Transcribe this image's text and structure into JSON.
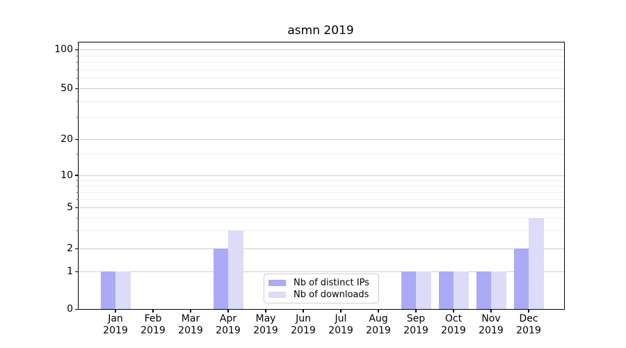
{
  "title": "asmn 2019",
  "chart_data": {
    "type": "bar",
    "title": "asmn 2019",
    "categories": [
      "Jan 2019",
      "Feb 2019",
      "Mar 2019",
      "Apr 2019",
      "May 2019",
      "Jun 2019",
      "Jul 2019",
      "Aug 2019",
      "Sep 2019",
      "Oct 2019",
      "Nov 2019",
      "Dec 2019"
    ],
    "months": [
      "Jan",
      "Feb",
      "Mar",
      "Apr",
      "May",
      "Jun",
      "Jul",
      "Aug",
      "Sep",
      "Oct",
      "Nov",
      "Dec"
    ],
    "year": "2019",
    "series": [
      {
        "name": "Nb of distinct IPs",
        "color": "#aaaaf6",
        "values": [
          1,
          0,
          0,
          2,
          0,
          0,
          0,
          0,
          1,
          1,
          1,
          2
        ]
      },
      {
        "name": "Nb of downloads",
        "color": "#dcdcf9",
        "values": [
          1,
          0,
          0,
          3,
          0,
          0,
          0,
          0,
          1,
          1,
          1,
          4
        ]
      }
    ],
    "xlabel": "",
    "ylabel": "",
    "yscale": "symlog",
    "y_ticks": [
      0,
      1,
      2,
      5,
      10,
      20,
      50,
      100
    ],
    "y_minor_ticks": [
      3,
      4,
      6,
      7,
      8,
      9,
      15,
      30,
      40,
      60,
      70,
      80,
      90
    ],
    "ylim": [
      0,
      115
    ],
    "grid": "horizontal major+minor",
    "legend_position": "inside lower center"
  },
  "colors": {
    "spine": "#000000",
    "grid_major": "#cdcdcd",
    "grid_minor": "#ededed",
    "legend_border": "#cccccc",
    "background": "#ffffff",
    "text": "#000000"
  }
}
